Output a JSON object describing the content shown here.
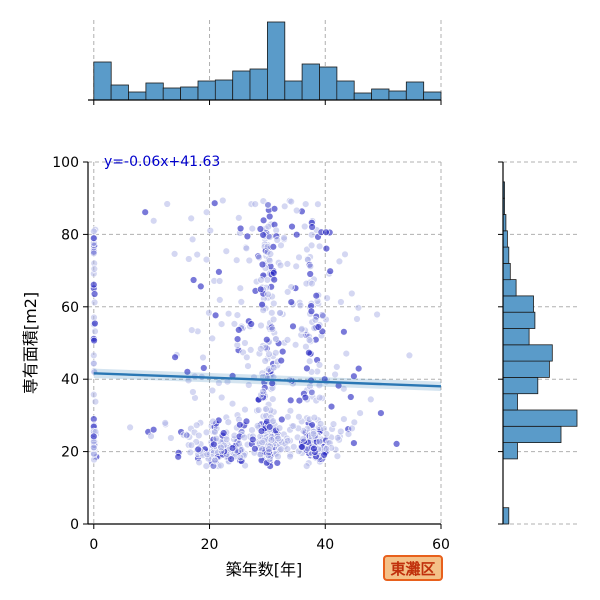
{
  "chart_data": {
    "type": "scatter",
    "xlabel": "築年数[年]",
    "ylabel": "専有面積[m2]",
    "xlim": [
      -1,
      60
    ],
    "ylim": [
      0,
      100
    ],
    "x_ticks": [
      "0",
      "20",
      "40",
      "60"
    ],
    "y_ticks": [
      "0",
      "20",
      "40",
      "60",
      "80",
      "100"
    ],
    "grid": true,
    "regression": {
      "label": "y=-0.06x+41.63",
      "slope": -0.06,
      "intercept": 41.63
    },
    "top_histogram": {
      "bin_start": 0,
      "bin_width": 3,
      "counts": [
        38,
        15,
        8,
        17,
        12,
        13,
        19,
        20,
        29,
        31,
        78,
        19,
        36,
        33,
        19,
        7,
        11,
        9,
        18,
        8
      ]
    },
    "right_histogram": {
      "bin_start": 0,
      "bin_width": 4.5,
      "counts": [
        4,
        0,
        0,
        0,
        10,
        40,
        51,
        10,
        24,
        32,
        34,
        18,
        22,
        21,
        9,
        5,
        4,
        3,
        2,
        1,
        1,
        0
      ]
    },
    "colors": {
      "point": "#1f1fbf",
      "hist": "#5a9bc9",
      "line": "#2a77b4",
      "eq": "#0000cc"
    }
  },
  "region_badge": {
    "label": "東灘区",
    "fill": "#f4c087",
    "border": "#e8601c",
    "text": "#c0300c"
  }
}
